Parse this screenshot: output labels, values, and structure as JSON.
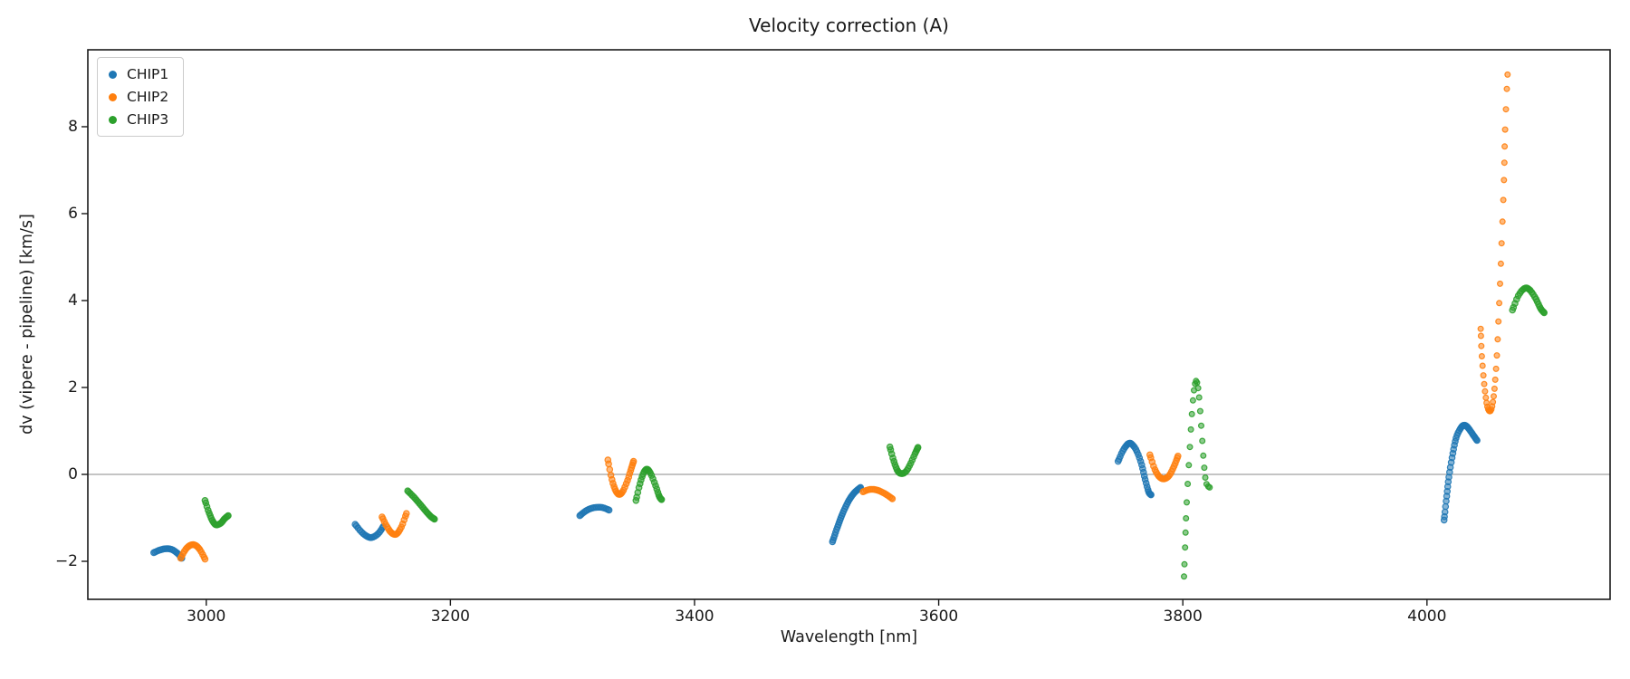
{
  "figure": {
    "title": "Velocity correction (A)",
    "xlabel": "Wavelength [nm]",
    "ylabel": "dv (vipere - pipeline) [km/s]"
  },
  "chart_data": {
    "type": "scatter",
    "title": "Velocity correction (A)",
    "xlabel": "Wavelength [nm]",
    "ylabel": "dv (vipere - pipeline) [km/s]",
    "xlim": [
      2903,
      4150
    ],
    "ylim": [
      -2.875,
      9.77
    ],
    "xticks": [
      3000,
      3200,
      3400,
      3600,
      3800,
      4000
    ],
    "yticks": [
      -2,
      0,
      2,
      4,
      6,
      8
    ],
    "grid": false,
    "zero_line_y": 0,
    "zero_line_color": "#888888",
    "legend_position": "upper left",
    "axis_color": "#1a1a1a",
    "series": [
      {
        "name": "CHIP1",
        "color": "#1f77b4",
        "segments": [
          {
            "n": 20,
            "pts": [
              [
                2957,
                -1.8
              ],
              [
                2962,
                -1.74
              ],
              [
                2967,
                -1.71
              ],
              [
                2972,
                -1.73
              ],
              [
                2977,
                -1.83
              ],
              [
                2980,
                -1.93
              ]
            ]
          },
          {
            "n": 20,
            "pts": [
              [
                3122,
                -1.15
              ],
              [
                3127,
                -1.32
              ],
              [
                3132,
                -1.43
              ],
              [
                3136,
                -1.45
              ],
              [
                3141,
                -1.36
              ],
              [
                3145,
                -1.2
              ]
            ]
          },
          {
            "n": 18,
            "pts": [
              [
                3306,
                -0.95
              ],
              [
                3311,
                -0.84
              ],
              [
                3317,
                -0.77
              ],
              [
                3324,
                -0.76
              ],
              [
                3330,
                -0.82
              ]
            ]
          },
          {
            "n": 30,
            "pts": [
              [
                3513,
                -1.55
              ],
              [
                3517,
                -1.22
              ],
              [
                3521,
                -0.92
              ],
              [
                3526,
                -0.62
              ],
              [
                3531,
                -0.42
              ],
              [
                3536,
                -0.3
              ]
            ]
          },
          {
            "n": 34,
            "pts": [
              [
                3747,
                0.3
              ],
              [
                3751,
                0.55
              ],
              [
                3755,
                0.7
              ],
              [
                3758,
                0.7
              ],
              [
                3762,
                0.55
              ],
              [
                3766,
                0.25
              ],
              [
                3769,
                -0.1
              ],
              [
                3772,
                -0.4
              ],
              [
                3774,
                -0.47
              ]
            ]
          },
          {
            "n": 42,
            "pts": [
              [
                4014,
                -1.05
              ],
              [
                4016,
                -0.55
              ],
              [
                4018,
                -0.05
              ],
              [
                4021,
                0.45
              ],
              [
                4024,
                0.85
              ],
              [
                4028,
                1.08
              ],
              [
                4031,
                1.13
              ],
              [
                4034,
                1.06
              ],
              [
                4038,
                0.9
              ],
              [
                4041,
                0.78
              ]
            ]
          }
        ]
      },
      {
        "name": "CHIP2",
        "color": "#ff7f0e",
        "segments": [
          {
            "n": 20,
            "pts": [
              [
                2979,
                -1.93
              ],
              [
                2983,
                -1.73
              ],
              [
                2987,
                -1.63
              ],
              [
                2991,
                -1.63
              ],
              [
                2995,
                -1.74
              ],
              [
                2999,
                -1.95
              ]
            ]
          },
          {
            "n": 20,
            "pts": [
              [
                3144,
                -0.98
              ],
              [
                3148,
                -1.2
              ],
              [
                3152,
                -1.35
              ],
              [
                3156,
                -1.37
              ],
              [
                3160,
                -1.2
              ],
              [
                3164,
                -0.9
              ]
            ]
          },
          {
            "n": 26,
            "pts": [
              [
                3329,
                0.33
              ],
              [
                3332,
                -0.08
              ],
              [
                3335,
                -0.35
              ],
              [
                3338,
                -0.46
              ],
              [
                3341,
                -0.4
              ],
              [
                3345,
                -0.15
              ],
              [
                3348,
                0.12
              ],
              [
                3350,
                0.3
              ]
            ]
          },
          {
            "n": 18,
            "pts": [
              [
                3538,
                -0.4
              ],
              [
                3543,
                -0.35
              ],
              [
                3548,
                -0.35
              ],
              [
                3553,
                -0.4
              ],
              [
                3558,
                -0.48
              ],
              [
                3562,
                -0.56
              ]
            ]
          },
          {
            "n": 24,
            "pts": [
              [
                3773,
                0.45
              ],
              [
                3777,
                0.12
              ],
              [
                3781,
                -0.06
              ],
              [
                3785,
                -0.1
              ],
              [
                3789,
                -0.02
              ],
              [
                3793,
                0.2
              ],
              [
                3796,
                0.42
              ]
            ]
          },
          {
            "n": 38,
            "r": 2.9,
            "pts": [
              [
                4044,
                3.35
              ],
              [
                4045,
                2.7
              ],
              [
                4047,
                2.05
              ],
              [
                4049,
                1.62
              ],
              [
                4051,
                1.46
              ],
              [
                4053,
                1.52
              ],
              [
                4055,
                1.88
              ],
              [
                4057,
                2.6
              ],
              [
                4059,
                3.8
              ],
              [
                4061,
                5.2
              ],
              [
                4063,
                6.7
              ],
              [
                4064,
                7.9
              ],
              [
                4066,
                9.2
              ]
            ]
          }
        ]
      },
      {
        "name": "CHIP3",
        "color": "#2ca02c",
        "segments": [
          {
            "n": 22,
            "pts": [
              [
                2999,
                -0.6
              ],
              [
                3002,
                -0.86
              ],
              [
                3005,
                -1.06
              ],
              [
                3008,
                -1.16
              ],
              [
                3012,
                -1.12
              ],
              [
                3015,
                -1.02
              ],
              [
                3018,
                -0.95
              ]
            ]
          },
          {
            "n": 22,
            "pts": [
              [
                3165,
                -0.38
              ],
              [
                3170,
                -0.52
              ],
              [
                3175,
                -0.68
              ],
              [
                3180,
                -0.85
              ],
              [
                3184,
                -0.97
              ],
              [
                3187,
                -1.03
              ]
            ]
          },
          {
            "n": 26,
            "pts": [
              [
                3352,
                -0.6
              ],
              [
                3355,
                -0.25
              ],
              [
                3358,
                0.02
              ],
              [
                3361,
                0.12
              ],
              [
                3364,
                0.02
              ],
              [
                3368,
                -0.25
              ],
              [
                3371,
                -0.5
              ],
              [
                3373,
                -0.58
              ]
            ]
          },
          {
            "n": 26,
            "pts": [
              [
                3560,
                0.63
              ],
              [
                3563,
                0.33
              ],
              [
                3566,
                0.1
              ],
              [
                3569,
                0.02
              ],
              [
                3573,
                0.06
              ],
              [
                3577,
                0.25
              ],
              [
                3581,
                0.5
              ],
              [
                3583,
                0.62
              ]
            ]
          },
          {
            "n": 27,
            "r": 2.9,
            "pts": [
              [
                3801,
                -2.35
              ],
              [
                3802,
                -1.55
              ],
              [
                3803,
                -0.75
              ],
              [
                3805,
                0.25
              ],
              [
                3807,
                1.2
              ],
              [
                3809,
                1.9
              ],
              [
                3811,
                2.15
              ],
              [
                3813,
                1.88
              ],
              [
                3815,
                1.15
              ],
              [
                3817,
                0.35
              ],
              [
                3819,
                -0.18
              ],
              [
                3822,
                -0.3
              ]
            ]
          },
          {
            "n": 26,
            "pts": [
              [
                4070,
                3.78
              ],
              [
                4075,
                4.12
              ],
              [
                4080,
                4.28
              ],
              [
                4084,
                4.25
              ],
              [
                4089,
                4.05
              ],
              [
                4093,
                3.82
              ],
              [
                4096,
                3.72
              ]
            ]
          }
        ]
      }
    ]
  }
}
